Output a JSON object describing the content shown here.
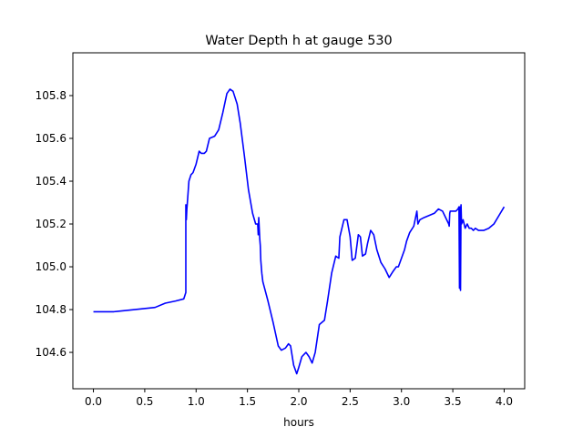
{
  "chart_data": {
    "type": "line",
    "title": "Water Depth h at gauge 530",
    "xlabel": "hours",
    "ylabel": "",
    "xlim": [
      -0.2,
      4.2
    ],
    "ylim": [
      104.43,
      106.0
    ],
    "xticks": [
      0.0,
      0.5,
      1.0,
      1.5,
      2.0,
      2.5,
      3.0,
      3.5,
      4.0
    ],
    "xtick_labels": [
      "0.0",
      "0.5",
      "1.0",
      "1.5",
      "2.0",
      "2.5",
      "3.0",
      "3.5",
      "4.0"
    ],
    "yticks": [
      104.6,
      104.8,
      105.0,
      105.2,
      105.4,
      105.6,
      105.8
    ],
    "ytick_labels": [
      "104.6",
      "104.8",
      "105.0",
      "105.2",
      "105.4",
      "105.6",
      "105.8"
    ],
    "grid": false,
    "series": [
      {
        "color": "#0000ff",
        "x": [
          0.0,
          0.2,
          0.4,
          0.6,
          0.7,
          0.8,
          0.88,
          0.9,
          0.9,
          0.905,
          0.91,
          0.915,
          0.93,
          0.95,
          0.97,
          1.0,
          1.03,
          1.05,
          1.08,
          1.1,
          1.13,
          1.18,
          1.22,
          1.26,
          1.3,
          1.33,
          1.36,
          1.4,
          1.43,
          1.47,
          1.51,
          1.55,
          1.58,
          1.6,
          1.605,
          1.61,
          1.615,
          1.62,
          1.625,
          1.63,
          1.64,
          1.65,
          1.7,
          1.75,
          1.8,
          1.83,
          1.87,
          1.9,
          1.92,
          1.95,
          1.98,
          2.0,
          2.03,
          2.07,
          2.1,
          2.13,
          2.16,
          2.2,
          2.25,
          2.28,
          2.32,
          2.36,
          2.39,
          2.4,
          2.42,
          2.44,
          2.47,
          2.5,
          2.52,
          2.55,
          2.58,
          2.6,
          2.62,
          2.65,
          2.67,
          2.7,
          2.73,
          2.76,
          2.8,
          2.84,
          2.88,
          2.92,
          2.95,
          2.97,
          3.0,
          3.03,
          3.05,
          3.08,
          3.12,
          3.15,
          3.16,
          3.17,
          3.18,
          3.22,
          3.27,
          3.32,
          3.36,
          3.4,
          3.43,
          3.46,
          3.465,
          3.47,
          3.475,
          3.5,
          3.53,
          3.55,
          3.56,
          3.565,
          3.57,
          3.575,
          3.58,
          3.585,
          3.6,
          3.62,
          3.64,
          3.66,
          3.68,
          3.7,
          3.72,
          3.75,
          3.8,
          3.85,
          3.9,
          3.95,
          4.0
        ],
        "y": [
          104.79,
          104.79,
          104.8,
          104.81,
          104.83,
          104.84,
          104.85,
          104.88,
          105.29,
          105.22,
          105.27,
          105.3,
          105.4,
          105.43,
          105.44,
          105.48,
          105.54,
          105.53,
          105.53,
          105.54,
          105.6,
          105.61,
          105.64,
          105.72,
          105.81,
          105.83,
          105.82,
          105.76,
          105.67,
          105.52,
          105.36,
          105.25,
          105.2,
          105.2,
          105.15,
          105.23,
          105.18,
          105.13,
          105.1,
          105.03,
          104.97,
          104.93,
          104.84,
          104.74,
          104.63,
          104.61,
          104.62,
          104.64,
          104.63,
          104.54,
          104.5,
          104.53,
          104.58,
          104.6,
          104.58,
          104.55,
          104.6,
          104.73,
          104.75,
          104.84,
          104.97,
          105.05,
          105.04,
          105.14,
          105.18,
          105.22,
          105.22,
          105.14,
          105.03,
          105.04,
          105.15,
          105.14,
          105.05,
          105.06,
          105.11,
          105.17,
          105.15,
          105.08,
          105.02,
          104.99,
          104.95,
          104.98,
          105.0,
          105.0,
          105.04,
          105.08,
          105.12,
          105.16,
          105.19,
          105.26,
          105.2,
          105.21,
          105.22,
          105.23,
          105.24,
          105.25,
          105.27,
          105.26,
          105.23,
          105.2,
          105.19,
          105.25,
          105.26,
          105.26,
          105.26,
          105.27,
          105.28,
          104.9,
          105.28,
          104.89,
          105.29,
          105.2,
          105.22,
          105.18,
          105.2,
          105.18,
          105.18,
          105.17,
          105.18,
          105.17,
          105.17,
          105.18,
          105.2,
          105.24,
          105.28
        ]
      }
    ]
  }
}
